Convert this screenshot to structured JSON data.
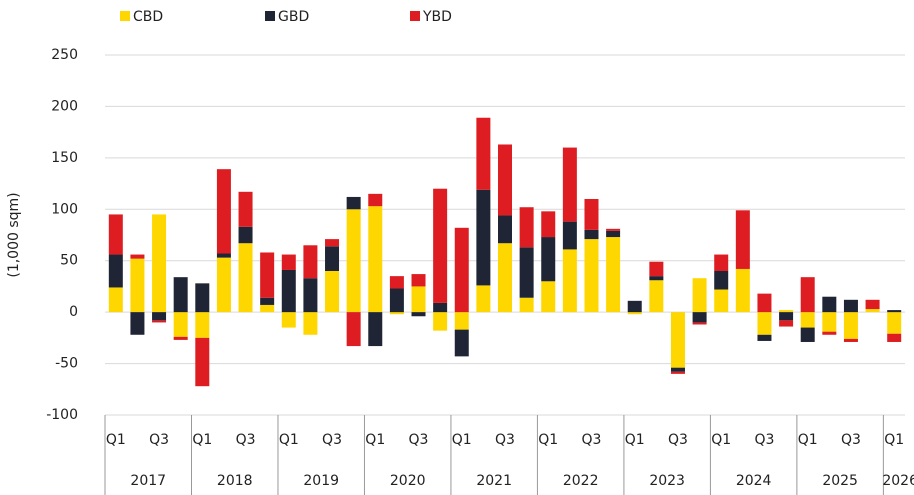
{
  "chart_data": {
    "type": "stacked_bar",
    "y_label": "(1,000 sqm)",
    "categories": [
      "Q1",
      null,
      "Q3",
      null,
      "Q1",
      null,
      "Q3",
      null,
      "Q1",
      null,
      "Q3",
      null,
      "Q1",
      null,
      "Q3",
      null,
      "Q1",
      null,
      "Q3",
      null,
      "Q1",
      null,
      "Q3",
      null,
      "Q1",
      null,
      "Q3",
      null,
      "Q1",
      null,
      "Q3",
      null,
      "Q1",
      null,
      "Q3",
      null,
      "Q1"
    ],
    "years": [
      "2017",
      "2018",
      "2019",
      "2020",
      "2021",
      "2022",
      "2023",
      "2024",
      "2025",
      "2026"
    ],
    "series": [
      {
        "name": "CBD",
        "color": "#ffd700",
        "values": [
          24,
          52,
          95,
          -24,
          -25,
          53,
          67,
          7,
          -15,
          -22,
          40,
          100,
          103,
          -2,
          25,
          -18,
          -17,
          26,
          67,
          14,
          30,
          61,
          71,
          73,
          -2,
          31,
          -54,
          33,
          22,
          42,
          -22,
          2,
          -15,
          -19,
          -26,
          3,
          -21
        ]
      },
      {
        "name": "GBD",
        "color": "#1f2535",
        "values": [
          32,
          -22,
          -8,
          34,
          28,
          4,
          16,
          7,
          41,
          33,
          24,
          12,
          -33,
          23,
          -4,
          9,
          -26,
          93,
          27,
          49,
          43,
          27,
          9,
          6,
          11,
          4,
          -4,
          -10,
          18,
          0,
          -6,
          -8,
          -14,
          15,
          12,
          0,
          2
        ]
      },
      {
        "name": "YBD",
        "color": "#dd1d21",
        "values": [
          39,
          4,
          -2,
          -3,
          -47,
          82,
          34,
          44,
          15,
          32,
          7,
          -33,
          12,
          12,
          12,
          111,
          82,
          70,
          69,
          39,
          25,
          72,
          30,
          2,
          0,
          14,
          -2,
          -2,
          16,
          57,
          18,
          -6,
          34,
          -3,
          -3,
          9,
          -8
        ]
      }
    ],
    "ylim": [
      -100,
      250
    ],
    "yticks": [
      -100,
      -50,
      0,
      50,
      100,
      150,
      200,
      250
    ],
    "grid": true
  }
}
